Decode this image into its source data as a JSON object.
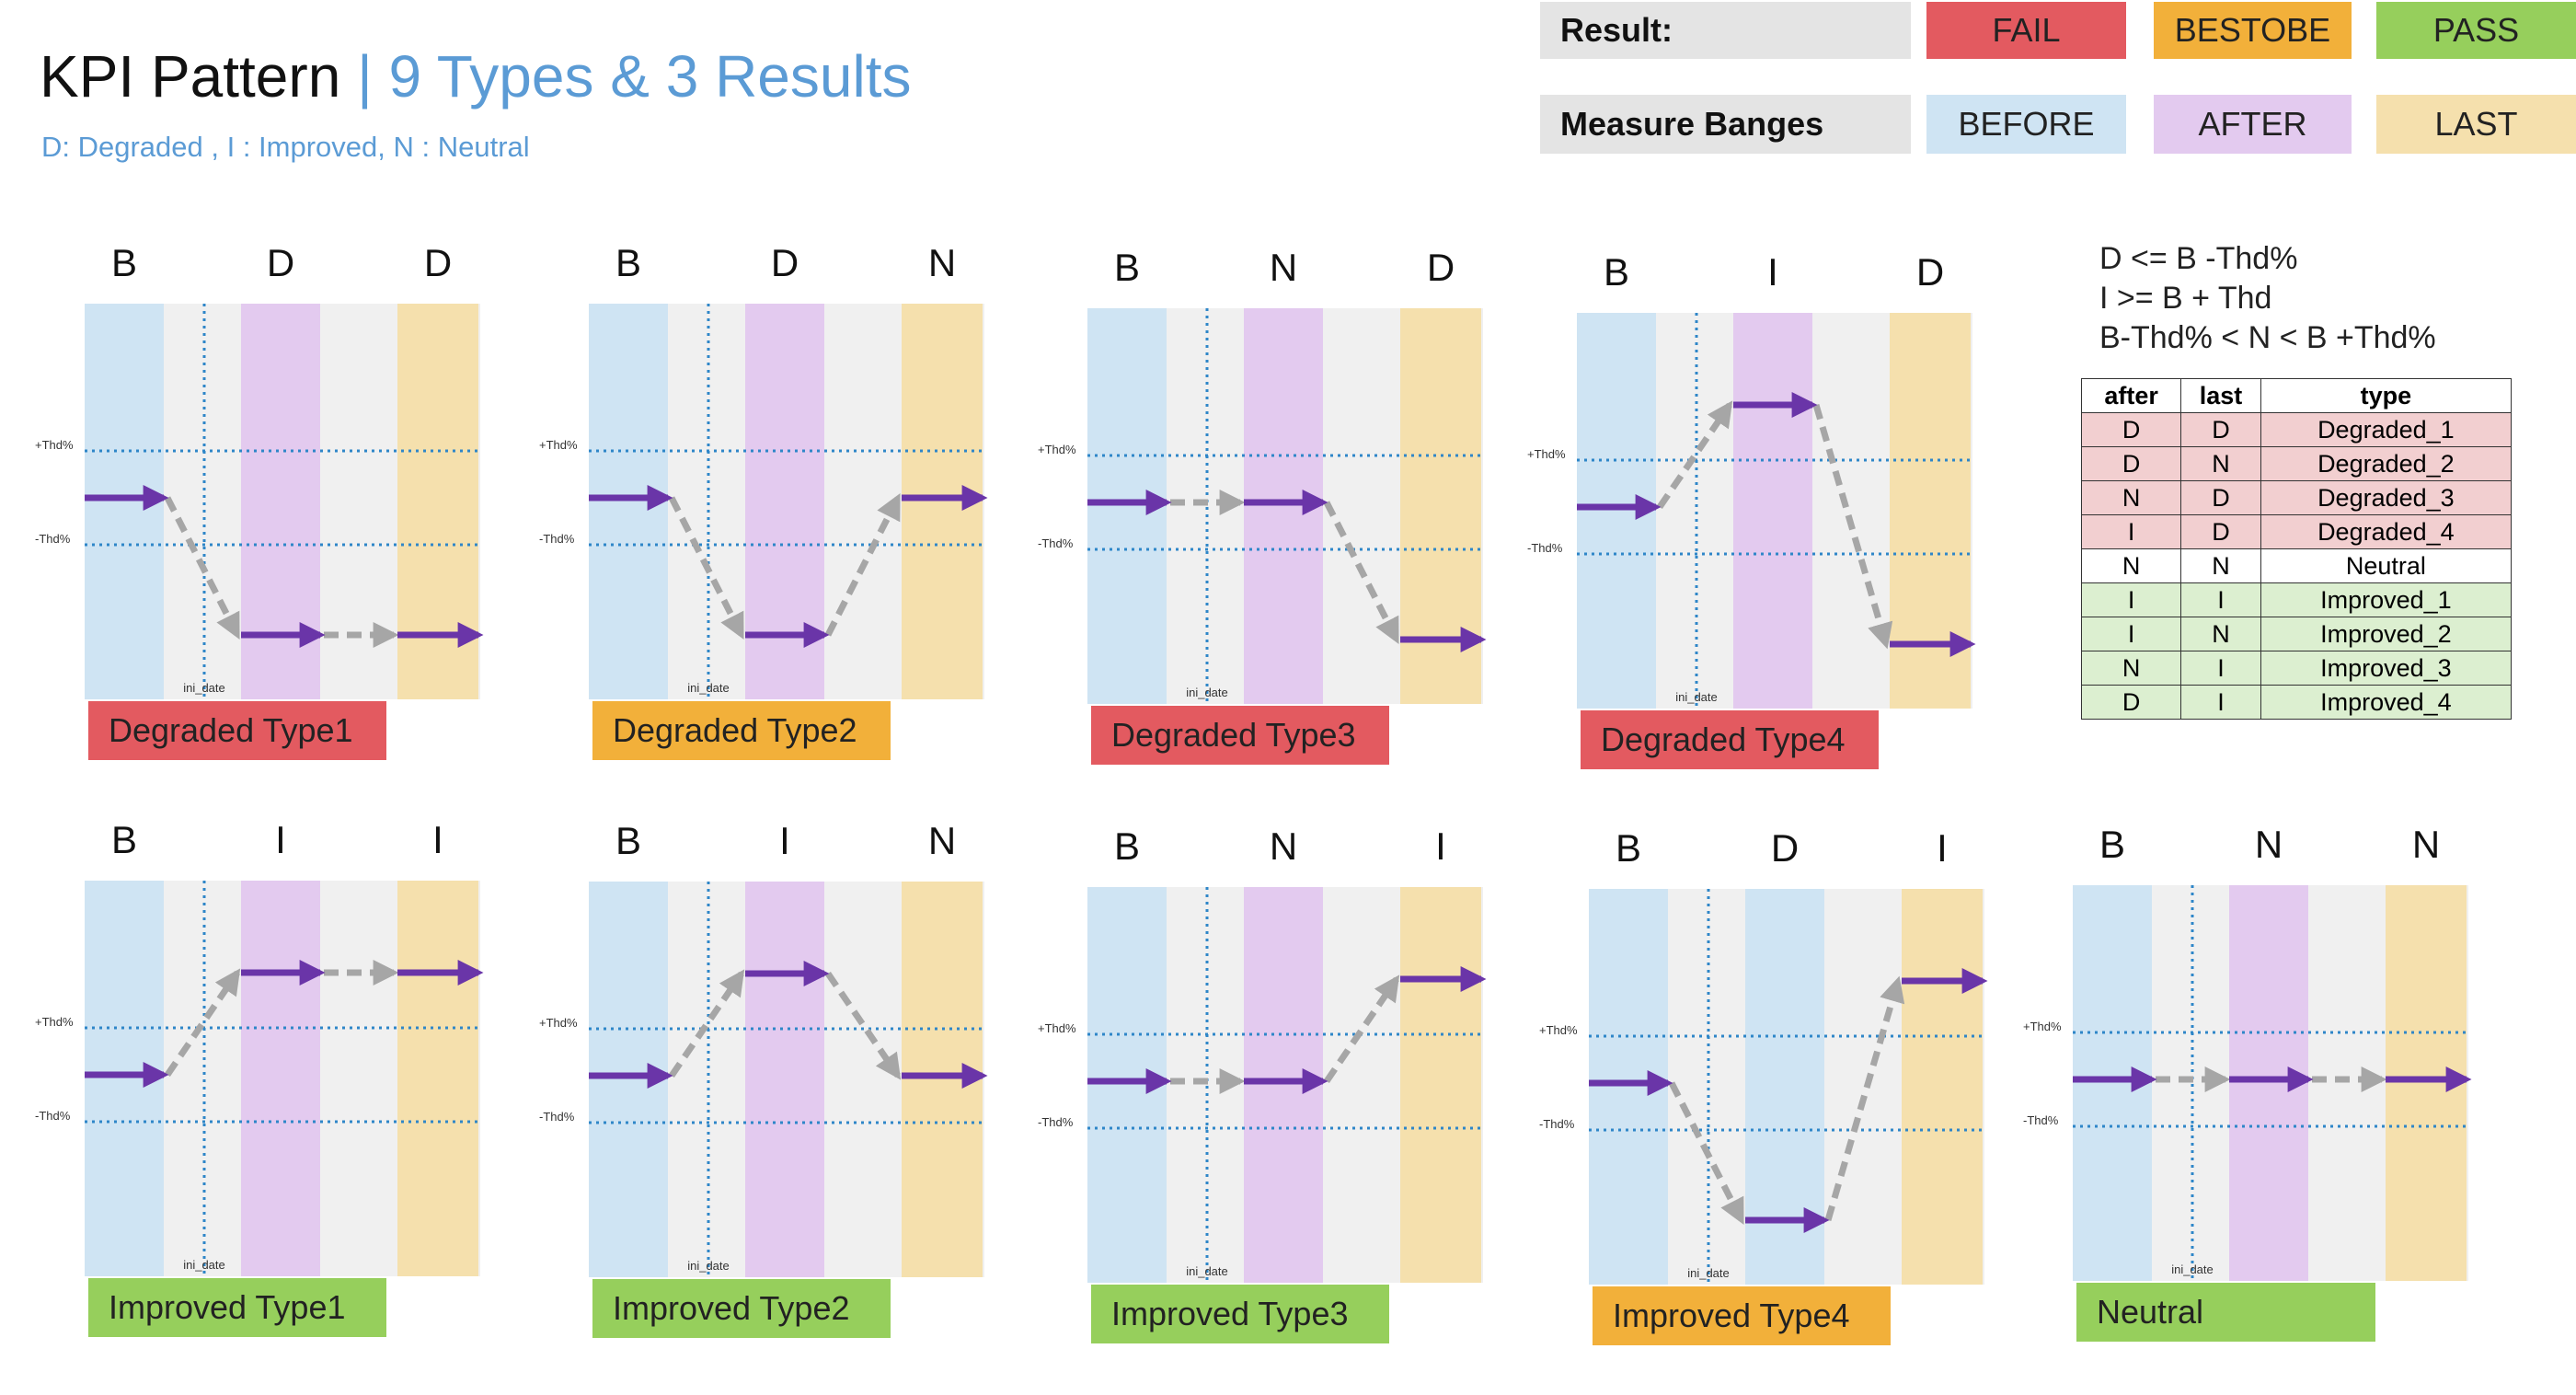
{
  "header": {
    "title_main": "KPI Pattern ",
    "title_sub": "| 9 Types  & 3 Results",
    "subtitle": "D: Degraded , I : Improved, N : Neutral"
  },
  "legend": {
    "result_label": "Result:",
    "results": [
      {
        "label": "FAIL",
        "color": "#e35a60"
      },
      {
        "label": "BESTOBE",
        "color": "#f2b03a"
      },
      {
        "label": "PASS",
        "color": "#96cf5c"
      }
    ],
    "ranges_label": "Measure Banges",
    "ranges": [
      {
        "label": "BEFORE",
        "color": "#cfe4f3"
      },
      {
        "label": "AFTER",
        "color": "#e3caef"
      },
      {
        "label": "LAST",
        "color": "#f5e0ad"
      }
    ]
  },
  "rules": [
    "D <= B -Thd%",
    "I >= B + Thd",
    "B-Thd% < N < B +Thd%"
  ],
  "type_table": {
    "headers": [
      "after",
      "last",
      "type"
    ],
    "rows": [
      {
        "after": "D",
        "last": "D",
        "type": "Degraded_1",
        "group": "deg"
      },
      {
        "after": "D",
        "last": "N",
        "type": "Degraded_2",
        "group": "deg"
      },
      {
        "after": "N",
        "last": "D",
        "type": "Degraded_3",
        "group": "deg"
      },
      {
        "after": "I",
        "last": "D",
        "type": "Degraded_4",
        "group": "deg"
      },
      {
        "after": "N",
        "last": "N",
        "type": "Neutral",
        "group": "neu"
      },
      {
        "after": "I",
        "last": "I",
        "type": "Improved_1",
        "group": "imp"
      },
      {
        "after": "I",
        "last": "N",
        "type": "Improved_2",
        "group": "imp"
      },
      {
        "after": "N",
        "last": "I",
        "type": "Improved_3",
        "group": "imp"
      },
      {
        "after": "D",
        "last": "I",
        "type": "Improved_4",
        "group": "imp"
      }
    ]
  },
  "panel_common": {
    "thd_plus": "+Thd%",
    "thd_minus": "-Thd%",
    "ini_date": "ini_date"
  },
  "panels": [
    {
      "headers": [
        "B",
        "D",
        "D"
      ],
      "levels": [
        "N",
        "D",
        "D"
      ],
      "label": "Degraded Type1",
      "result": "FAIL",
      "label_color": "#e35a60",
      "after_band": "after"
    },
    {
      "headers": [
        "B",
        "D",
        "N"
      ],
      "levels": [
        "N",
        "D",
        "N"
      ],
      "label": "Degraded Type2",
      "result": "BESTOBE",
      "label_color": "#f2b03a",
      "after_band": "after"
    },
    {
      "headers": [
        "B",
        "N",
        "D"
      ],
      "levels": [
        "N",
        "N",
        "D"
      ],
      "label": "Degraded Type3",
      "result": "FAIL",
      "label_color": "#e35a60",
      "after_band": "after"
    },
    {
      "headers": [
        "B",
        "I",
        "D"
      ],
      "levels": [
        "N",
        "I",
        "D"
      ],
      "label": "Degraded Type4",
      "result": "FAIL",
      "label_color": "#e35a60",
      "after_band": "after"
    },
    {
      "headers": [
        "B",
        "I",
        "I"
      ],
      "levels": [
        "N",
        "I",
        "I"
      ],
      "label": "Improved Type1",
      "result": "PASS",
      "label_color": "#96cf5c",
      "after_band": "after"
    },
    {
      "headers": [
        "B",
        "I",
        "N"
      ],
      "levels": [
        "N",
        "I",
        "N"
      ],
      "label": "Improved Type2",
      "result": "PASS",
      "label_color": "#96cf5c",
      "after_band": "after"
    },
    {
      "headers": [
        "B",
        "N",
        "I"
      ],
      "levels": [
        "N",
        "N",
        "I"
      ],
      "label": "Improved Type3",
      "result": "PASS",
      "label_color": "#96cf5c",
      "after_band": "after"
    },
    {
      "headers": [
        "B",
        "D",
        "I"
      ],
      "levels": [
        "N",
        "D",
        "I"
      ],
      "label": "Improved Type4",
      "result": "BESTOBE",
      "label_color": "#f2b03a",
      "after_band": "before"
    },
    {
      "headers": [
        "B",
        "N",
        "N"
      ],
      "levels": [
        "N",
        "N",
        "N"
      ],
      "label": "Neutral",
      "result": "PASS",
      "label_color": "#96cf5c",
      "after_band": "after"
    }
  ],
  "colors": {
    "arrow_solid": "#6a35a8",
    "arrow_dashed": "#a6a6a6",
    "thd_line": "#2e86c8",
    "gap_band": "#f0f0f0"
  }
}
